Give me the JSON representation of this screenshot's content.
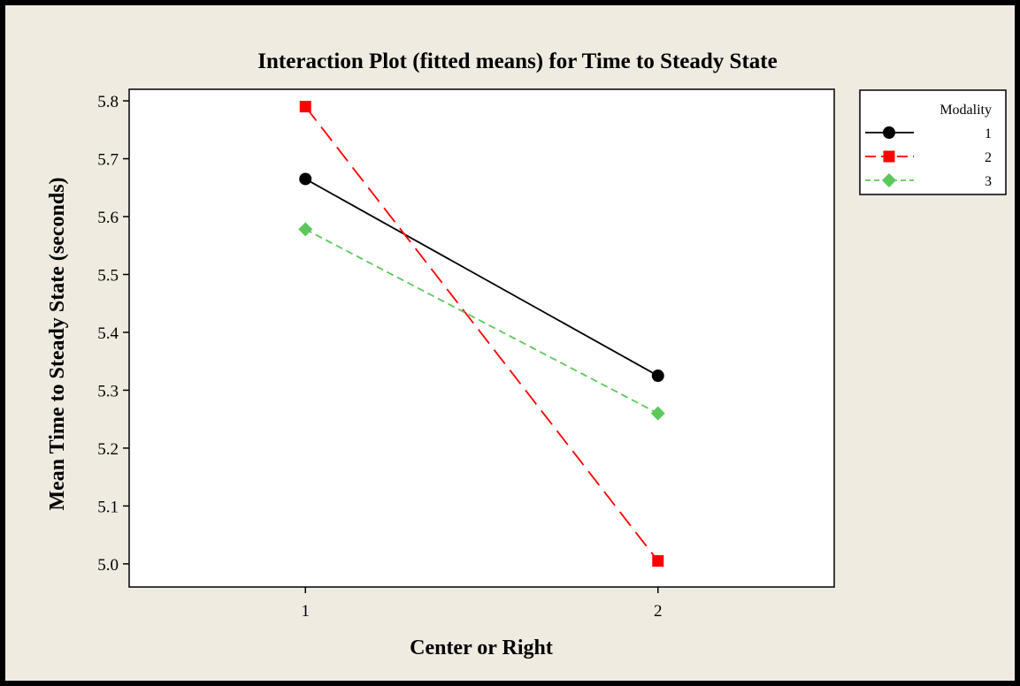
{
  "chart_data": {
    "type": "line",
    "title": "Interaction Plot (fitted means) for Time to Steady State",
    "xlabel": "Center or Right",
    "ylabel": "Mean Time to Steady State (seconds)",
    "categories": [
      "1",
      "2"
    ],
    "xlim": [
      0.5,
      2.5
    ],
    "ylim": [
      4.96,
      5.82
    ],
    "yticks": [
      "5.0",
      "5.1",
      "5.2",
      "5.3",
      "5.4",
      "5.5",
      "5.6",
      "5.7",
      "5.8"
    ],
    "grid": false,
    "legend": {
      "title": "Modality",
      "position": "right"
    },
    "series": [
      {
        "name": "1",
        "values": [
          5.665,
          5.325
        ],
        "color": "#000000",
        "marker": "circle",
        "line": "solid"
      },
      {
        "name": "2",
        "values": [
          5.79,
          5.005
        ],
        "color": "#ff0000",
        "marker": "square",
        "line": "long-dash"
      },
      {
        "name": "3",
        "values": [
          5.578,
          5.26
        ],
        "color": "#5cc85c",
        "marker": "diamond",
        "line": "short-dash"
      }
    ]
  },
  "colors": {
    "figure_background": "#efebe1",
    "plot_background": "#ffffff",
    "frame": "#000000"
  }
}
